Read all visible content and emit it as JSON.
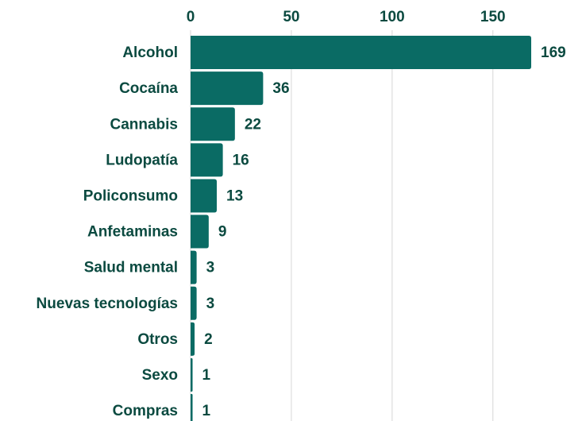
{
  "chart_data": {
    "type": "bar",
    "orientation": "horizontal",
    "categories": [
      "Alcohol",
      "Cocaína",
      "Cannabis",
      "Ludopatía",
      "Policonsumo",
      "Anfetaminas",
      "Salud mental",
      "Nuevas tecnologías",
      "Otros",
      "Sexo",
      "Compras"
    ],
    "values": [
      169,
      36,
      22,
      16,
      13,
      9,
      3,
      3,
      2,
      1,
      1
    ],
    "color": "#0a6b64",
    "xlim": [
      0,
      169
    ],
    "xticks": [
      0,
      50,
      100,
      150
    ],
    "grid": true
  }
}
